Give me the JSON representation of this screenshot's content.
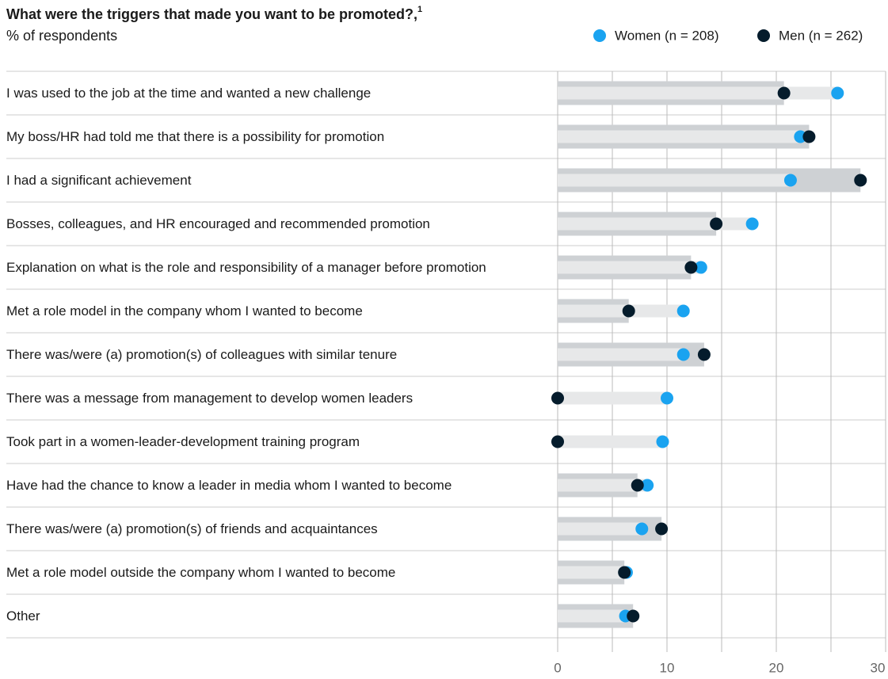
{
  "chart_data": {
    "type": "dumbbell-bar",
    "title": "What were the triggers that made you want to be promoted?,",
    "title_footnote": "1",
    "subtitle": "% of respondents",
    "categories": [
      "I was used to the job at the time and wanted a new challenge",
      "My boss/HR had told me that there is a possibility for promotion",
      "I had a significant achievement",
      "Bosses, colleagues, and HR encouraged and recommended promotion",
      "Explanation on what is the role and responsibility of a manager before promotion",
      "Met a role model in the company whom I wanted to become",
      "There was/were (a) promotion(s) of colleagues with similar tenure",
      "There was a message from management to develop women leaders",
      "Took part in a women-leader-development training program",
      "Have had the chance to know a leader in media whom I wanted to become",
      "There was/were (a) promotion(s) of friends and acquaintances",
      "Met a role model outside the company whom I wanted to become",
      "Other"
    ],
    "series": [
      {
        "name": "Women (n = 208)",
        "color": "#1aa3f0",
        "bar_color": "#e7e8e9",
        "values": [
          25.6,
          22.2,
          21.3,
          17.8,
          13.1,
          11.5,
          11.5,
          10.0,
          9.6,
          8.2,
          7.7,
          6.3,
          6.2
        ]
      },
      {
        "name": "Men (n = 262)",
        "color": "#051c2c",
        "bar_color": "#ced1d4",
        "values": [
          20.7,
          23.0,
          27.7,
          14.5,
          12.2,
          6.5,
          13.4,
          0,
          0,
          7.3,
          9.5,
          6.1,
          6.9
        ]
      }
    ],
    "xlim": [
      0,
      30
    ],
    "xticks": [
      0,
      10,
      20,
      30
    ],
    "minor_xticks": [
      5,
      15,
      25
    ],
    "grid": true,
    "legend": "top-right"
  }
}
